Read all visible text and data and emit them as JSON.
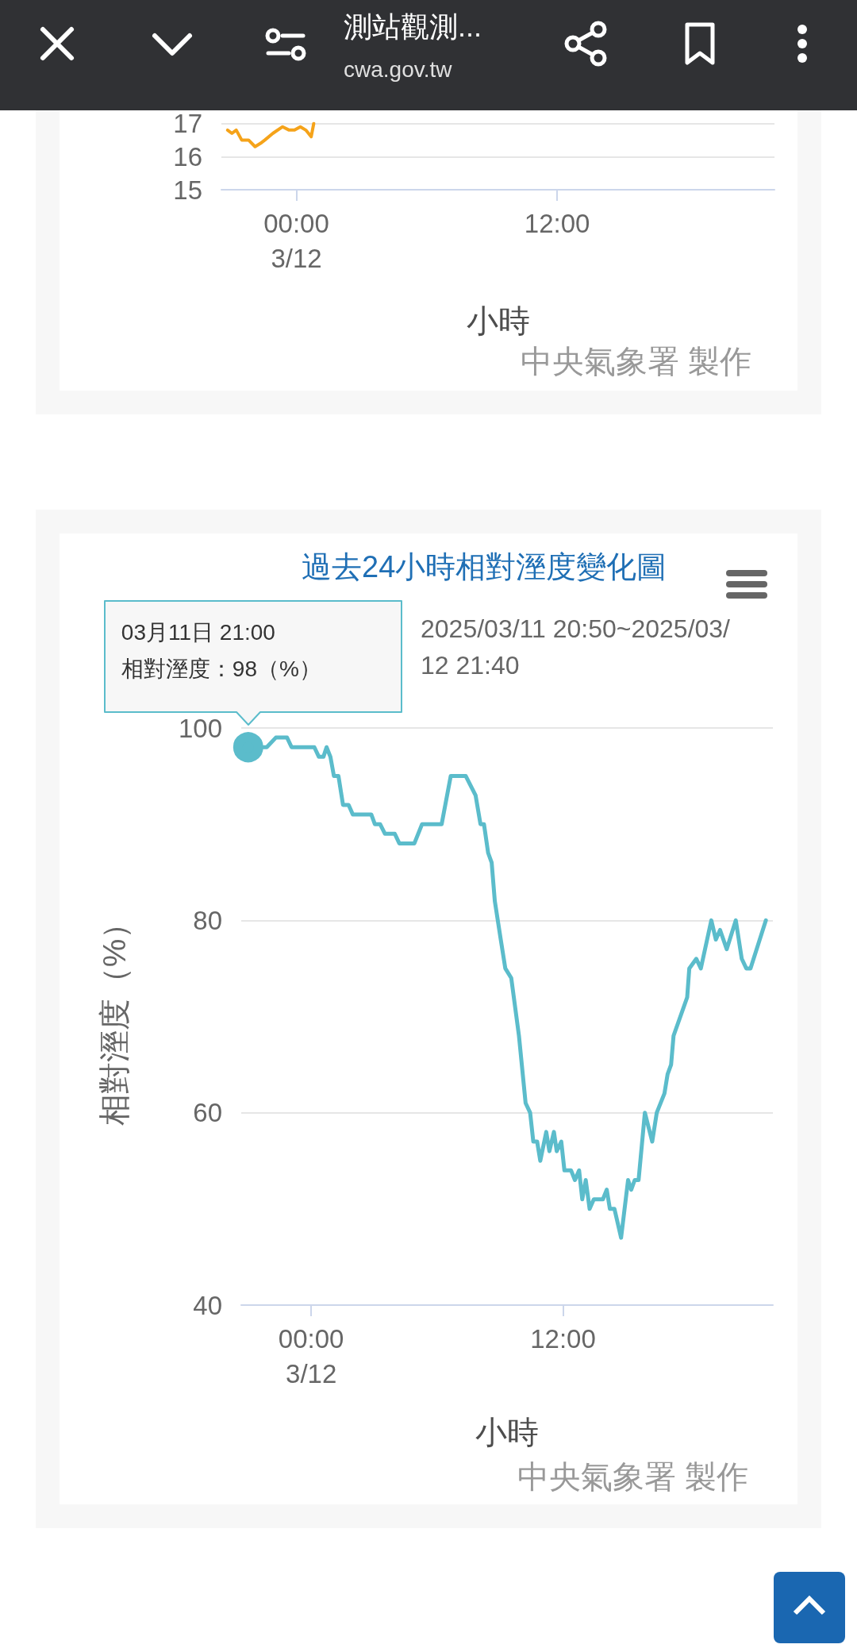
{
  "chart_data": [
    {
      "type": "line",
      "title": "測站觀測...",
      "subtitle": "cwa.gov.tw",
      "xlabel": "小時",
      "annotations": [
        "中央氣象署 製作"
      ],
      "x": [
        "2025-03-11T20:50",
        "2025-03-11T21:02",
        "2025-03-11T21:14",
        "2025-03-11T21:29",
        "2025-03-11T21:48",
        "2025-03-11T22:06",
        "2025-03-11T22:21",
        "2025-03-11T22:33",
        "2025-03-11T22:55",
        "2025-03-11T23:22",
        "2025-03-11T23:40",
        "2025-03-11T23:55",
        "2025-03-12T00:11",
        "2025-03-12T00:26",
        "2025-03-12T00:41",
        "2025-03-12T00:48"
      ],
      "series": [
        {
          "color": "#f5a31a",
          "values": [
            16.8,
            16.7,
            16.8,
            16.5,
            16.5,
            16.3,
            16.4,
            16.5,
            16.7,
            16.9,
            16.8,
            16.8,
            16.9,
            16.8,
            16.6,
            17.0
          ]
        }
      ],
      "xlim": [
        "2025-03-11T20:33",
        "2025-03-12T22:00"
      ],
      "ylim": [
        15,
        17
      ],
      "xticks": [
        {
          "value": "2025-03-12T00:00",
          "label": "00:00\n3/12"
        },
        {
          "value": "2025-03-12T12:00",
          "label": "12:00"
        }
      ],
      "yticks": [
        15,
        16,
        17
      ],
      "grid": "y",
      "marker": "none",
      "line_style": "solid"
    },
    {
      "type": "line",
      "title": "過去24小時相對溼度變化圖",
      "subtitle": "2025/03/11 20:50~2025/03/12 21:40",
      "xlabel": "小時",
      "ylabel": "相對溼度（%）",
      "annotations": [
        {
          "text": "03月11日 21:00\n相對溼度：98（%）",
          "x": "2025-03-11T21:00",
          "y": 98
        },
        "中央氣象署 製作"
      ],
      "x": [
        "2025-03-11T21:00",
        "2025-03-11T21:53",
        "2025-03-11T22:19",
        "2025-03-11T22:51",
        "2025-03-11T23:04",
        "2025-03-12T00:09",
        "2025-03-12T00:22",
        "2025-03-12T00:35",
        "2025-03-12T00:44",
        "2025-03-12T00:55",
        "2025-03-12T01:05",
        "2025-03-12T01:18",
        "2025-03-12T01:31",
        "2025-03-12T01:47",
        "2025-03-12T01:59",
        "2025-03-12T02:52",
        "2025-03-12T03:02",
        "2025-03-12T03:17",
        "2025-03-12T03:31",
        "2025-03-12T03:59",
        "2025-03-12T04:12",
        "2025-03-12T04:55",
        "2025-03-12T05:17",
        "2025-03-12T06:13",
        "2025-03-12T06:39",
        "2025-03-12T07:22",
        "2025-03-12T07:50",
        "2025-03-12T08:04",
        "2025-03-12T08:14",
        "2025-03-12T08:26",
        "2025-03-12T08:36",
        "2025-03-12T08:45",
        "2025-03-12T09:02",
        "2025-03-12T09:15",
        "2025-03-12T09:32",
        "2025-03-12T09:54",
        "2025-03-12T10:13",
        "2025-03-12T10:26",
        "2025-03-12T10:35",
        "2025-03-12T10:46",
        "2025-03-12T10:55",
        "2025-03-12T11:12",
        "2025-03-12T11:21",
        "2025-03-12T11:34",
        "2025-03-12T11:42",
        "2025-03-12T11:55",
        "2025-03-12T12:04",
        "2025-03-12T12:23",
        "2025-03-12T12:34",
        "2025-03-12T12:46",
        "2025-03-12T12:55",
        "2025-03-12T13:05",
        "2025-03-12T13:16",
        "2025-03-12T13:28",
        "2025-03-12T13:54",
        "2025-03-12T14:05",
        "2025-03-12T14:14",
        "2025-03-12T14:27",
        "2025-03-12T14:46",
        "2025-03-12T15:06",
        "2025-03-12T15:15",
        "2025-03-12T15:25",
        "2025-03-12T15:36",
        "2025-03-12T15:54",
        "2025-03-12T16:15",
        "2025-03-12T16:28",
        "2025-03-12T16:50",
        "2025-03-12T16:59",
        "2025-03-12T17:09",
        "2025-03-12T17:16",
        "2025-03-12T17:55",
        "2025-03-12T18:01",
        "2025-03-12T18:21",
        "2025-03-12T18:34",
        "2025-03-12T19:04",
        "2025-03-12T19:17",
        "2025-03-12T19:29",
        "2025-03-12T19:48",
        "2025-03-12T20:14",
        "2025-03-12T20:31",
        "2025-03-12T20:44",
        "2025-03-12T20:56",
        "2025-03-12T21:40"
      ],
      "series": [
        {
          "color": "#5bbccb",
          "values": [
            98,
            98,
            99,
            99,
            98,
            98,
            97,
            97,
            98,
            97,
            95,
            95,
            92,
            92,
            91,
            91,
            90,
            90,
            89,
            89,
            88,
            88,
            90,
            90,
            95,
            95,
            93,
            90,
            90,
            87,
            86,
            82,
            78,
            75,
            74,
            68,
            61,
            60,
            57,
            57,
            55,
            58,
            56,
            58,
            56,
            57,
            54,
            54,
            53,
            54,
            51,
            53,
            50,
            51,
            51,
            52,
            50,
            50,
            47,
            53,
            52,
            53,
            53,
            60,
            57,
            60,
            62,
            64,
            65,
            68,
            72,
            75,
            76,
            75,
            80,
            78,
            79,
            77,
            80,
            76,
            75,
            75,
            80
          ]
        }
      ],
      "xlim": [
        "2025-03-11T20:40",
        "2025-03-12T22:00"
      ],
      "ylim": [
        40,
        100
      ],
      "xticks": [
        {
          "value": "2025-03-12T00:00",
          "label": "00:00\n3/12"
        },
        {
          "value": "2025-03-12T12:00",
          "label": "12:00"
        }
      ],
      "yticks": [
        40,
        60,
        80,
        100
      ],
      "grid": "y",
      "marker": "none",
      "line_style": "solid"
    }
  ]
}
